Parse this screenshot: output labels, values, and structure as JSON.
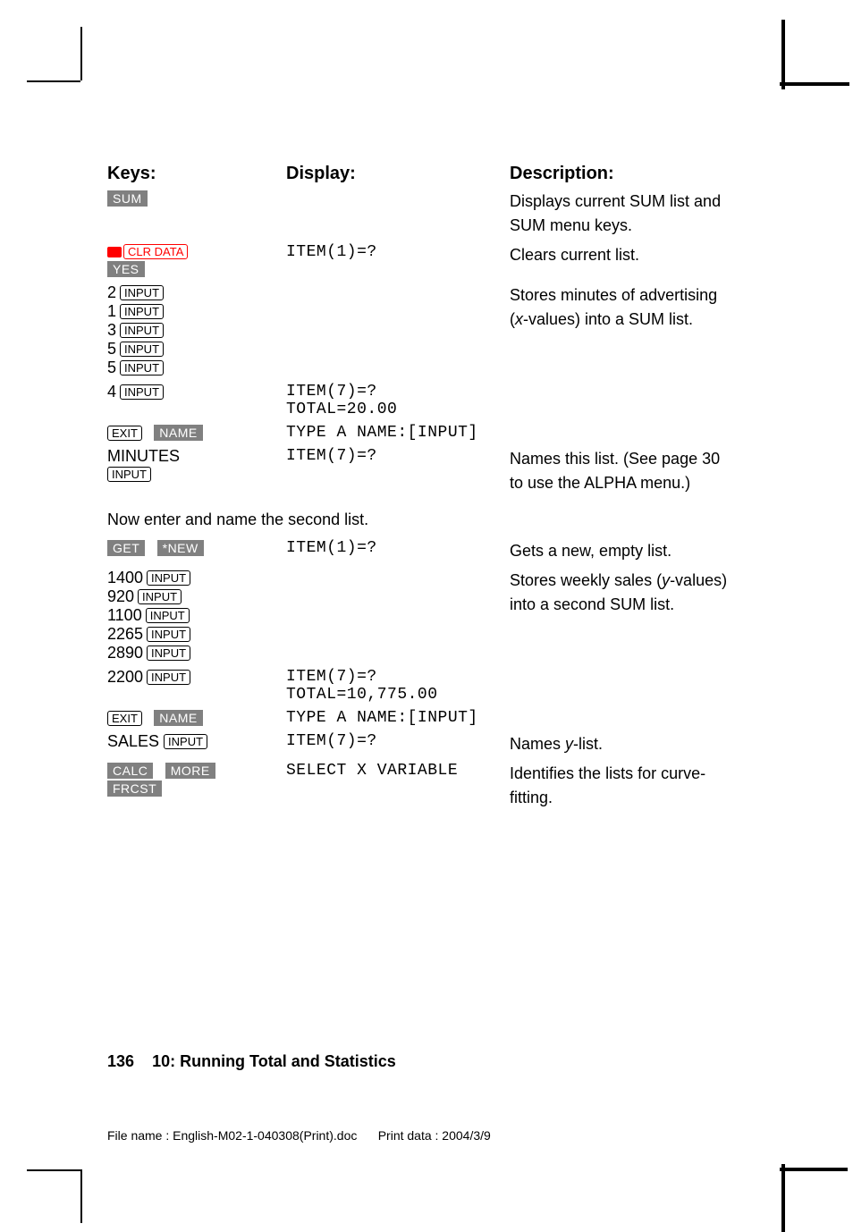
{
  "headers": {
    "keys": "Keys:",
    "display": "Display:",
    "description": "Description:"
  },
  "rows": [
    {
      "keys": [
        {
          "type": "softkey",
          "text": "SUM"
        }
      ],
      "display": "",
      "desc": "Displays current SUM list and SUM menu keys."
    },
    {
      "keys": [
        {
          "type": "shift"
        },
        {
          "type": "hardkey-red",
          "text": "CLR DATA"
        },
        {
          "type": "br"
        },
        {
          "type": "softkey",
          "text": "YES"
        }
      ],
      "display": "ITEM(1)=?",
      "desc": "Clears current list."
    },
    {
      "keys": [
        {
          "type": "num",
          "text": "2"
        },
        {
          "type": "hardkey",
          "text": "INPUT"
        },
        {
          "type": "br"
        },
        {
          "type": "num",
          "text": "1"
        },
        {
          "type": "hardkey",
          "text": "INPUT"
        },
        {
          "type": "br"
        },
        {
          "type": "num",
          "text": "3"
        },
        {
          "type": "hardkey",
          "text": "INPUT"
        },
        {
          "type": "br"
        },
        {
          "type": "num",
          "text": "5"
        },
        {
          "type": "hardkey",
          "text": "INPUT"
        },
        {
          "type": "br"
        },
        {
          "type": "num",
          "text": "5"
        },
        {
          "type": "hardkey",
          "text": "INPUT"
        }
      ],
      "display": "",
      "desc": "Stores minutes of advertising (<i>x</i>-values) into a SUM list."
    },
    {
      "keys": [
        {
          "type": "num",
          "text": "4"
        },
        {
          "type": "hardkey",
          "text": "INPUT"
        }
      ],
      "display": "ITEM(7)=?\nTOTAL=20.00",
      "desc": ""
    },
    {
      "keys": [
        {
          "type": "hardkey",
          "text": "EXIT"
        },
        {
          "type": "sp"
        },
        {
          "type": "softkey",
          "text": "NAME"
        }
      ],
      "display": "TYPE A NAME:[INPUT]",
      "desc": ""
    },
    {
      "keys": [
        {
          "type": "typed",
          "text": "MINUTES"
        },
        {
          "type": "br"
        },
        {
          "type": "hardkey",
          "text": "INPUT"
        }
      ],
      "display": "\nITEM(7)=?",
      "desc": "Names this list. (See page 30 to use the ALPHA menu.)"
    }
  ],
  "midtext": "Now enter and name the second list.",
  "rows2": [
    {
      "keys": [
        {
          "type": "softkey",
          "text": "GET"
        },
        {
          "type": "sp"
        },
        {
          "type": "softkey",
          "text": "*NEW"
        }
      ],
      "display": "ITEM(1)=?",
      "desc": "Gets a new, empty list."
    },
    {
      "keys": [
        {
          "type": "num",
          "text": "1400"
        },
        {
          "type": "hardkey",
          "text": "INPUT"
        },
        {
          "type": "br"
        },
        {
          "type": "num",
          "text": "920"
        },
        {
          "type": "hardkey",
          "text": "INPUT"
        },
        {
          "type": "br"
        },
        {
          "type": "num",
          "text": "1100"
        },
        {
          "type": "hardkey",
          "text": "INPUT"
        },
        {
          "type": "br"
        },
        {
          "type": "num",
          "text": "2265"
        },
        {
          "type": "hardkey",
          "text": "INPUT"
        },
        {
          "type": "br"
        },
        {
          "type": "num",
          "text": "2890"
        },
        {
          "type": "hardkey",
          "text": "INPUT"
        }
      ],
      "display": "",
      "desc": "Stores weekly sales (<i>y</i>-values) into a second SUM list."
    },
    {
      "keys": [
        {
          "type": "num",
          "text": "2200"
        },
        {
          "type": "hardkey",
          "text": "INPUT"
        }
      ],
      "display": "ITEM(7)=?\nTOTAL=10,775.00",
      "desc": ""
    },
    {
      "keys": [
        {
          "type": "hardkey",
          "text": "EXIT"
        },
        {
          "type": "sp"
        },
        {
          "type": "softkey",
          "text": "NAME"
        }
      ],
      "display": "TYPE A NAME:[INPUT]",
      "desc": ""
    },
    {
      "keys": [
        {
          "type": "typed",
          "text": "SALES "
        },
        {
          "type": "hardkey",
          "text": "INPUT"
        }
      ],
      "display": "ITEM(7)=?",
      "desc": "Names <i>y</i>-list."
    },
    {
      "keys": [
        {
          "type": "softkey",
          "text": "CALC"
        },
        {
          "type": "sp"
        },
        {
          "type": "softkey",
          "text": "MORE"
        },
        {
          "type": "br"
        },
        {
          "type": "softkey",
          "text": "FRCST"
        }
      ],
      "display": "\nSELECT X VARIABLE",
      "desc": "Identifies the lists for curve-fitting."
    }
  ],
  "footer": {
    "page": "136",
    "chapter": "10: Running Total and Statistics"
  },
  "filefooter": {
    "filename": "File name : English-M02-1-040308(Print).doc",
    "printdata": "Print data : 2004/3/9"
  }
}
